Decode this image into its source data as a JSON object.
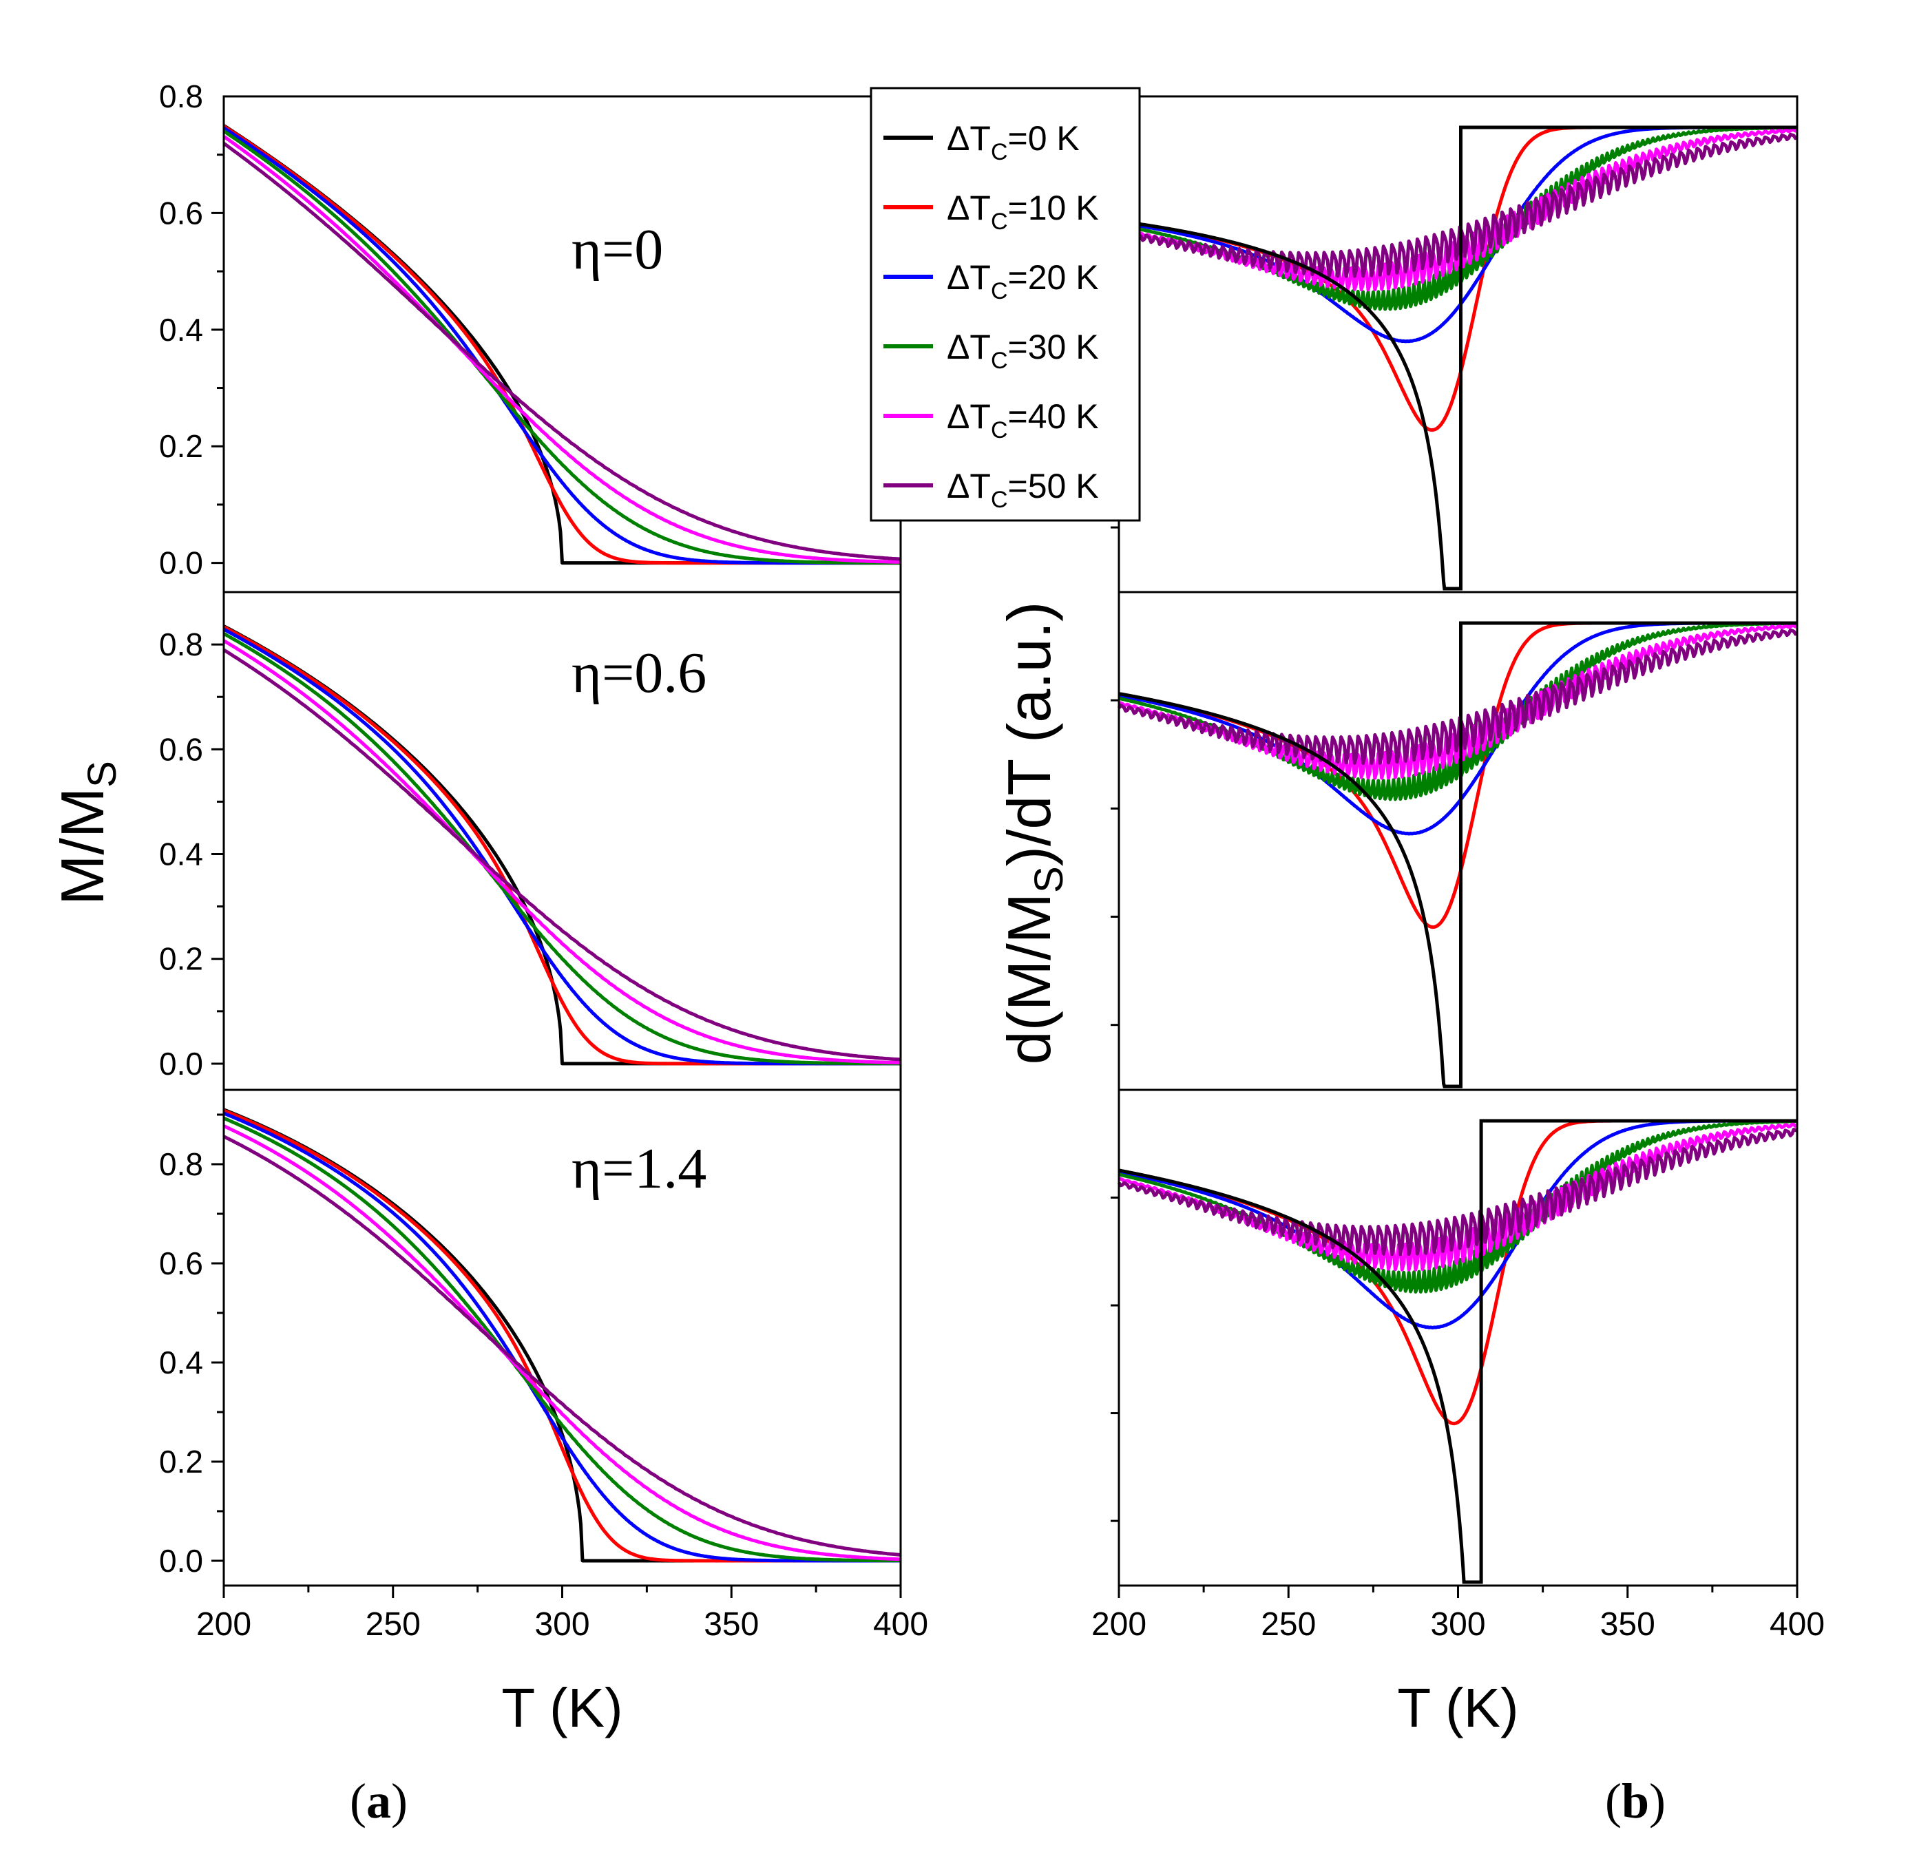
{
  "figure": {
    "panel_labels": {
      "a": {
        "open": "(",
        "letter": "a",
        "close": ")"
      },
      "b": {
        "open": "(",
        "letter": "b",
        "close": ")"
      }
    },
    "colors": {
      "dTc0": "#000000",
      "dTc10": "#ff0000",
      "dTc20": "#0000ff",
      "dTc30": "#008000",
      "dTc40": "#ff00ff",
      "dTc50": "#800080"
    }
  },
  "chart_data": [
    {
      "type": "line",
      "panel": "a",
      "title": "",
      "xlabel": "T (K)",
      "ylabel": "M/M",
      "ylabel_sub": "S",
      "xlim": [
        200,
        400
      ],
      "x_ticks": [
        "200",
        "250",
        "300",
        "350",
        "400"
      ],
      "legend": {
        "placement": "top-center",
        "prefix": "ΔT",
        "sub": "C",
        "entries": [
          "=0 K",
          "=10 K",
          "=20 K",
          "=30 K",
          "=40 K",
          "=50 K"
        ]
      },
      "subplots": [
        {
          "annotation": {
            "symbol": "η",
            "value": "=0"
          },
          "eta": 0,
          "Tc": 300,
          "ylim": [
            -0.05,
            0.8
          ],
          "y_ticks": [
            "0.0",
            "0.2",
            "0.4",
            "0.6",
            "0.8"
          ],
          "y_at_200": 0.75,
          "series": [
            {
              "name": "ΔTc=0 K",
              "dTc": 0
            },
            {
              "name": "ΔTc=10 K",
              "dTc": 10
            },
            {
              "name": "ΔTc=20 K",
              "dTc": 20
            },
            {
              "name": "ΔTc=30 K",
              "dTc": 30
            },
            {
              "name": "ΔTc=40 K",
              "dTc": 40
            },
            {
              "name": "ΔTc=50 K",
              "dTc": 50
            }
          ]
        },
        {
          "annotation": {
            "symbol": "η",
            "value": "=0.6"
          },
          "eta": 0.6,
          "Tc": 300,
          "ylim": [
            -0.05,
            0.9
          ],
          "y_ticks": [
            "0.0",
            "0.2",
            "0.4",
            "0.6",
            "0.8"
          ],
          "y_at_200": 0.835,
          "series": [
            {
              "name": "ΔTc=0 K",
              "dTc": 0
            },
            {
              "name": "ΔTc=10 K",
              "dTc": 10
            },
            {
              "name": "ΔTc=20 K",
              "dTc": 20
            },
            {
              "name": "ΔTc=30 K",
              "dTc": 30
            },
            {
              "name": "ΔTc=40 K",
              "dTc": 40
            },
            {
              "name": "ΔTc=50 K",
              "dTc": 50
            }
          ]
        },
        {
          "annotation": {
            "symbol": "η",
            "value": "=1.4"
          },
          "eta": 1.4,
          "Tc": 306,
          "ylim": [
            -0.05,
            0.95
          ],
          "y_ticks": [
            "0.0",
            "0.2",
            "0.4",
            "0.6",
            "0.8"
          ],
          "y_at_200": 0.91,
          "series": [
            {
              "name": "ΔTc=0 K",
              "dTc": 0
            },
            {
              "name": "ΔTc=10 K",
              "dTc": 10
            },
            {
              "name": "ΔTc=20 K",
              "dTc": 20
            },
            {
              "name": "ΔTc=30 K",
              "dTc": 30
            },
            {
              "name": "ΔTc=40 K",
              "dTc": 40
            },
            {
              "name": "ΔTc=50 K",
              "dTc": 50
            }
          ]
        }
      ]
    },
    {
      "type": "line",
      "panel": "b",
      "title": "",
      "xlabel": "T (K)",
      "ylabel_parts": {
        "pre": "d(M/M",
        "sub": "S",
        "post": ")/dT (a.u.)"
      },
      "xlim": [
        200,
        400
      ],
      "x_ticks": [
        "200",
        "250",
        "300",
        "350",
        "400"
      ],
      "y_tick_labels_shown": false,
      "subplots": [
        {
          "eta": 0,
          "Tc": 300,
          "series": [
            "ΔTc=0 K",
            "ΔTc=10 K",
            "ΔTc=20 K",
            "ΔTc=30 K",
            "ΔTc=40 K",
            "ΔTc=50 K"
          ]
        },
        {
          "eta": 0.6,
          "Tc": 300,
          "series": [
            "ΔTc=0 K",
            "ΔTc=10 K",
            "ΔTc=20 K",
            "ΔTc=30 K",
            "ΔTc=40 K",
            "ΔTc=50 K"
          ]
        },
        {
          "eta": 1.4,
          "Tc": 306,
          "series": [
            "ΔTc=0 K",
            "ΔTc=10 K",
            "ΔTc=20 K",
            "ΔTc=30 K",
            "ΔTc=40 K",
            "ΔTc=50 K"
          ]
        }
      ]
    }
  ]
}
